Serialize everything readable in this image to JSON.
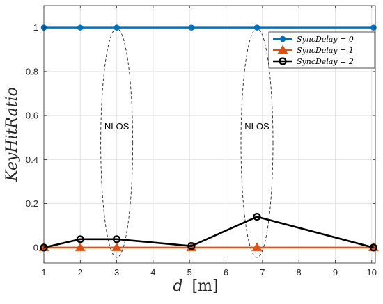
{
  "chart_data": {
    "type": "line",
    "xlabel": "d",
    "xlabel_unit": "[m]",
    "ylabel": "KeyHitRatio",
    "xlim": [
      1,
      10.1
    ],
    "ylim": [
      -0.07,
      1.1
    ],
    "xticks": [
      1,
      2,
      3,
      4,
      5,
      6,
      7,
      8,
      9,
      10
    ],
    "yticks": [
      0,
      0.2,
      0.4,
      0.6,
      0.8,
      1
    ],
    "grid": true,
    "legend_position": "top-right",
    "x": [
      1,
      2,
      3,
      5.05,
      6.85,
      10.05
    ],
    "series": [
      {
        "name": "SyncDelay = 0",
        "color": "#0072BD",
        "marker": "circle-filled",
        "values": [
          1,
          1,
          1,
          1,
          1,
          1
        ]
      },
      {
        "name": "SyncDelay = 1",
        "color": "#D95319",
        "marker": "triangle-filled",
        "values": [
          0,
          0,
          0,
          0,
          0,
          0
        ]
      },
      {
        "name": "SyncDelay = 2",
        "color": "#000000",
        "marker": "circle-open",
        "values": [
          0,
          0.038,
          0.038,
          0.007,
          0.14,
          0
        ]
      }
    ],
    "annotations": [
      {
        "text": "NLOS",
        "x": 3,
        "y": 0.55
      },
      {
        "text": "NLOS",
        "x": 6.85,
        "y": 0.55
      }
    ]
  }
}
